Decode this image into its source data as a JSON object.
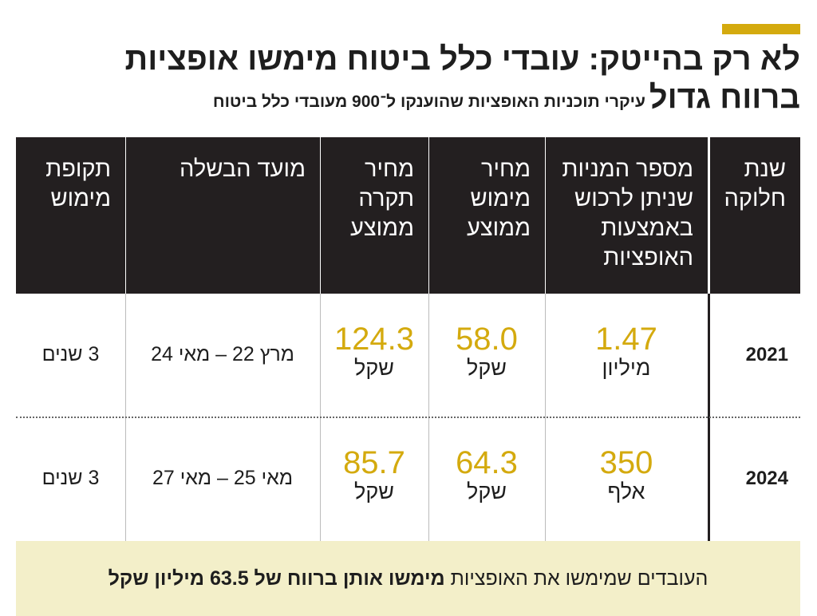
{
  "header": {
    "title": "לא רק בהייטק: עובדי כלל ביטוח מימשו אופציות",
    "title_line2": "ברווח גדול",
    "subtitle": "עיקרי תוכניות האופציות שהוענקו ל־900 מעובדי כלל ביטוח"
  },
  "table": {
    "columns": [
      [
        "שנת",
        "חלוקה"
      ],
      [
        "מספר המניות",
        "שניתן לרכוש",
        "באמצעות",
        "האופציות"
      ],
      [
        "מחיר",
        "מימוש",
        "ממוצע"
      ],
      [
        "מחיר",
        "תקרה",
        "ממוצע"
      ],
      [
        "מועד הבשלה"
      ],
      [
        "תקופת",
        "מימוש"
      ]
    ],
    "rows": [
      [
        "2021",
        {
          "value": "1.47",
          "unit": "מיליון"
        },
        {
          "value": "58.0",
          "unit": "שקל"
        },
        {
          "value": "124.3",
          "unit": "שקל"
        },
        "מרץ 22 – מאי 24",
        "3 שנים"
      ],
      [
        "2024",
        {
          "value": "350",
          "unit": "אלף"
        },
        {
          "value": "64.3",
          "unit": "שקל"
        },
        {
          "value": "85.7",
          "unit": "שקל"
        },
        "מאי 25 – מאי 27",
        "3 שנים"
      ]
    ]
  },
  "footer": {
    "text": "העובדים שמימשו את האופציות",
    "bold": "מימשו אותן ברווח של 63.5 מיליון שקל"
  }
}
